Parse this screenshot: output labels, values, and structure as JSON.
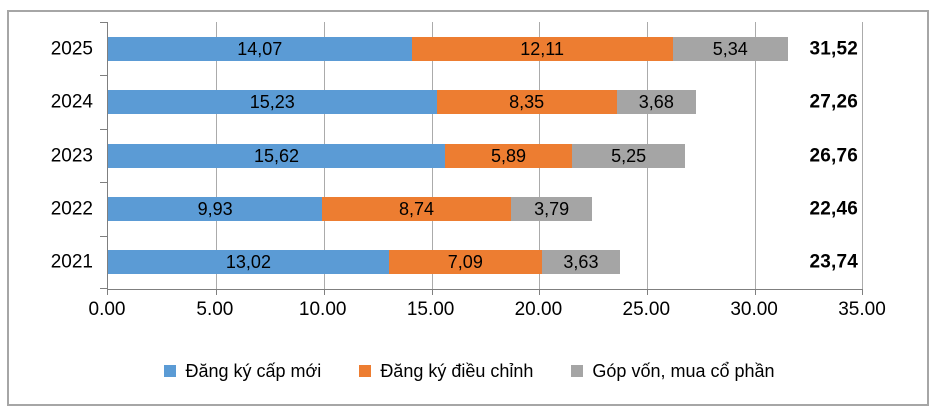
{
  "chart_data": {
    "type": "bar",
    "orientation": "horizontal",
    "stacked": true,
    "title": "",
    "categories": [
      "2025",
      "2024",
      "2023",
      "2022",
      "2021"
    ],
    "series": [
      {
        "name": "Đăng ký cấp mới",
        "color": "#5B9BD5",
        "values": [
          14.07,
          15.23,
          15.62,
          9.93,
          13.02
        ],
        "labels": [
          "14,07",
          "15,23",
          "15,62",
          "9,93",
          "13,02"
        ]
      },
      {
        "name": "Đăng ký điều chỉnh",
        "color": "#ED7D31",
        "values": [
          12.11,
          8.35,
          5.89,
          8.74,
          7.09
        ],
        "labels": [
          "12,11",
          "8,35",
          "5,89",
          "8,74",
          "7,09"
        ]
      },
      {
        "name": "Góp vốn, mua cổ phần",
        "color": "#A5A5A5",
        "values": [
          5.34,
          3.68,
          5.25,
          3.79,
          3.63
        ],
        "labels": [
          "5,34",
          "3,68",
          "5,25",
          "3,79",
          "3,63"
        ]
      }
    ],
    "totals": {
      "values": [
        31.52,
        27.26,
        26.76,
        22.46,
        23.74
      ],
      "labels": [
        "31,52",
        "27,26",
        "26,76",
        "22,46",
        "23,74"
      ]
    },
    "x_axis": {
      "min": 0,
      "max": 35,
      "step": 5,
      "tick_labels": [
        "0.00",
        "5.00",
        "10.00",
        "15.00",
        "20.00",
        "25.00",
        "30.00",
        "35.00"
      ]
    },
    "grid": true,
    "legend_position": "bottom",
    "colors": {
      "gridline": "#ABABAB",
      "axis": "#7F7F7F",
      "border": "#A6A6A6",
      "label_text": "#000000"
    }
  }
}
